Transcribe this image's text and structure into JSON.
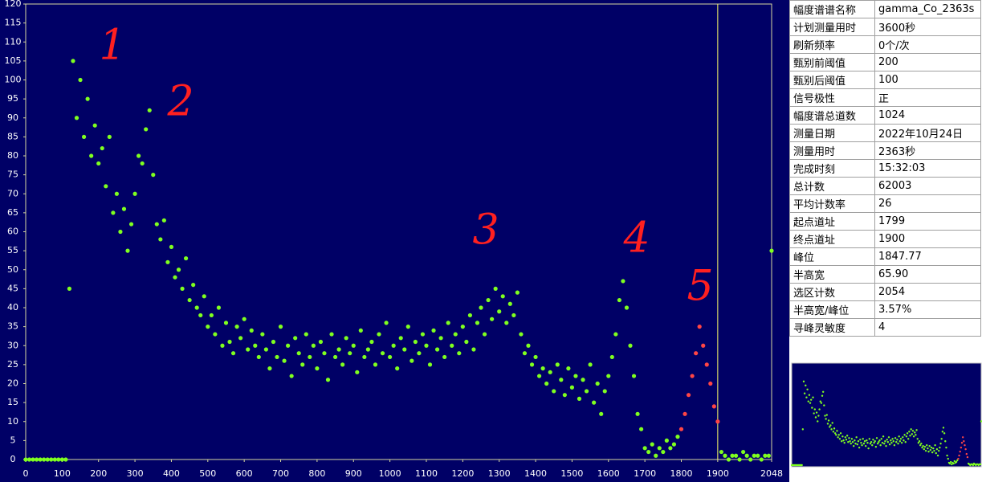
{
  "chart_data": {
    "type": "scatter",
    "xlim": [
      0,
      2048
    ],
    "ylim": [
      0,
      120
    ],
    "xticks": [
      0,
      100,
      200,
      300,
      400,
      500,
      600,
      700,
      800,
      900,
      1000,
      1100,
      1200,
      1300,
      1400,
      1500,
      1600,
      1700,
      1800,
      1900,
      2048
    ],
    "yticks": [
      0,
      5,
      10,
      15,
      20,
      25,
      30,
      35,
      40,
      45,
      50,
      55,
      60,
      65,
      70,
      75,
      80,
      85,
      90,
      95,
      100,
      105,
      110,
      115,
      120
    ],
    "marker_x": 1900,
    "annotations": [
      "1",
      "2",
      "3",
      "4",
      "5"
    ],
    "series": [
      {
        "color": "#7fff1f",
        "x": [
          0,
          10,
          20,
          30,
          40,
          50,
          60,
          70,
          80,
          90,
          100,
          110,
          120,
          130,
          140,
          150,
          160,
          170,
          180,
          190,
          200,
          210,
          220,
          230,
          240,
          250,
          260,
          270,
          280,
          290,
          300,
          310,
          320,
          330,
          340,
          350,
          360,
          370,
          380,
          390,
          400,
          410,
          420,
          430,
          440,
          450,
          460,
          470,
          480,
          490,
          500,
          510,
          520,
          530,
          540,
          550,
          560,
          570,
          580,
          590,
          600,
          610,
          620,
          630,
          640,
          650,
          660,
          670,
          680,
          690,
          700,
          710,
          720,
          730,
          740,
          750,
          760,
          770,
          780,
          790,
          800,
          810,
          820,
          830,
          840,
          850,
          860,
          870,
          880,
          890,
          900,
          910,
          920,
          930,
          940,
          950,
          960,
          970,
          980,
          990,
          1000,
          1010,
          1020,
          1030,
          1040,
          1050,
          1060,
          1070,
          1080,
          1090,
          1100,
          1110,
          1120,
          1130,
          1140,
          1150,
          1160,
          1170,
          1180,
          1190,
          1200,
          1210,
          1220,
          1230,
          1240,
          1250,
          1260,
          1270,
          1280,
          1290,
          1300,
          1310,
          1320,
          1330,
          1340,
          1350,
          1360,
          1370,
          1380,
          1390,
          1400,
          1410,
          1420,
          1430,
          1440,
          1450,
          1460,
          1470,
          1480,
          1490,
          1500,
          1510,
          1520,
          1530,
          1540,
          1550,
          1560,
          1570,
          1580,
          1590,
          1600,
          1610,
          1620,
          1630,
          1640,
          1650,
          1660,
          1670,
          1680,
          1690,
          1700,
          1710,
          1720,
          1730,
          1740,
          1750,
          1760,
          1770,
          1780,
          1790,
          1910,
          1920,
          1930,
          1940,
          1950,
          1960,
          1970,
          1980,
          1990,
          2000,
          2010,
          2020,
          2030,
          2040,
          2048
        ],
        "values": [
          0,
          0,
          0,
          0,
          0,
          0,
          0,
          0,
          0,
          0,
          0,
          0,
          45,
          105,
          90,
          100,
          85,
          95,
          80,
          88,
          78,
          82,
          72,
          85,
          65,
          70,
          60,
          66,
          55,
          62,
          70,
          80,
          78,
          87,
          92,
          75,
          62,
          58,
          63,
          52,
          56,
          48,
          50,
          45,
          53,
          42,
          46,
          40,
          38,
          43,
          35,
          38,
          33,
          40,
          30,
          36,
          31,
          28,
          35,
          32,
          37,
          29,
          34,
          30,
          27,
          33,
          29,
          24,
          31,
          27,
          35,
          26,
          30,
          22,
          32,
          28,
          25,
          33,
          27,
          30,
          24,
          31,
          28,
          21,
          33,
          27,
          29,
          25,
          32,
          28,
          30,
          23,
          34,
          27,
          29,
          31,
          25,
          33,
          28,
          36,
          27,
          30,
          24,
          32,
          29,
          35,
          26,
          31,
          28,
          33,
          30,
          25,
          34,
          29,
          32,
          27,
          36,
          30,
          33,
          28,
          35,
          31,
          38,
          29,
          36,
          40,
          33,
          42,
          37,
          45,
          39,
          43,
          36,
          41,
          38,
          44,
          33,
          28,
          30,
          25,
          27,
          22,
          24,
          20,
          23,
          18,
          25,
          21,
          17,
          24,
          19,
          22,
          16,
          21,
          18,
          25,
          15,
          20,
          12,
          18,
          22,
          27,
          33,
          42,
          47,
          40,
          30,
          22,
          12,
          8,
          3,
          2,
          4,
          1,
          3,
          2,
          5,
          3,
          4,
          6,
          2,
          1,
          0,
          1,
          1,
          0,
          2,
          1,
          0,
          1,
          1,
          0,
          1,
          1,
          55
        ]
      },
      {
        "color": "#ff4545",
        "x": [
          1800,
          1810,
          1820,
          1830,
          1840,
          1850,
          1860,
          1870,
          1880,
          1890,
          1900
        ],
        "values": [
          8,
          12,
          17,
          22,
          28,
          35,
          30,
          25,
          20,
          14,
          10
        ]
      }
    ]
  },
  "info": {
    "rows": [
      [
        "幅度谱谱名称",
        "gamma_Co_2363s"
      ],
      [
        "计划测量用时",
        "3600秒"
      ],
      [
        "刷新频率",
        "0个/次"
      ],
      [
        "甄别前阈值",
        "200"
      ],
      [
        "甄别后阈值",
        "100"
      ],
      [
        "信号极性",
        "正"
      ],
      [
        "幅度谱总道数",
        "1024"
      ],
      [
        "测量日期",
        "2022年10月24日"
      ],
      [
        "测量用时",
        "2363秒"
      ],
      [
        "完成时刻",
        "15:32:03"
      ],
      [
        "总计数",
        "62003"
      ],
      [
        "平均计数率",
        "26"
      ],
      [
        "起点道址",
        "1799"
      ],
      [
        "终点道址",
        "1900"
      ],
      [
        "峰位",
        "1847.77"
      ],
      [
        "半高宽",
        "65.90"
      ],
      [
        "选区计数",
        "2054"
      ],
      [
        "半高宽/峰位",
        "3.57%"
      ],
      [
        "寻峰灵敏度",
        "4"
      ]
    ]
  }
}
